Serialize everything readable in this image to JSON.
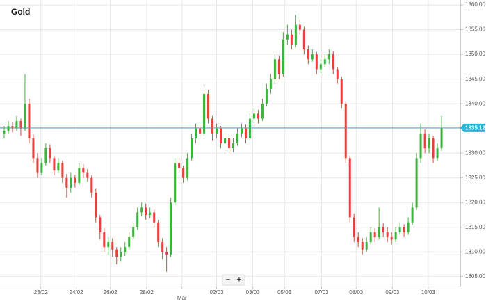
{
  "chart_data": {
    "type": "candlestick",
    "title": "Gold",
    "x": [
      1,
      2,
      3,
      4,
      5,
      6,
      7,
      8,
      9,
      10,
      11,
      12,
      13,
      14,
      15,
      16,
      17,
      18,
      19,
      20,
      21,
      22,
      23,
      24,
      25,
      26,
      27,
      28,
      29,
      30,
      31,
      32,
      33,
      34,
      35,
      36,
      37,
      38,
      39,
      40,
      41,
      42,
      43,
      44,
      45,
      46,
      47,
      48,
      49,
      50,
      51,
      52,
      53,
      54,
      55,
      56,
      57,
      58,
      59,
      60,
      61,
      62,
      63,
      64,
      65,
      66,
      67,
      68,
      69,
      70,
      71,
      72,
      73,
      74,
      75,
      76,
      77,
      78,
      79,
      80,
      81,
      82,
      83,
      84,
      85,
      86,
      87,
      88,
      89,
      90,
      91,
      92,
      93,
      94,
      95,
      96,
      97,
      98,
      99,
      100,
      101,
      102,
      103,
      104,
      105,
      106
    ],
    "open": [
      1834,
      1834.5,
      1835.5,
      1835,
      1836.5,
      1835,
      1840,
      1833,
      1829,
      1826,
      1828,
      1831,
      1829,
      1826.5,
      1828,
      1825,
      1823,
      1825,
      1824,
      1827,
      1826,
      1825,
      1822,
      1817,
      1814,
      1811,
      1812,
      1810.5,
      1809,
      1810,
      1811,
      1813,
      1815,
      1818,
      1819,
      1817.5,
      1818,
      1816,
      1812,
      1810,
      1809.5,
      1820,
      1828,
      1827,
      1825,
      1829,
      1833,
      1835,
      1834,
      1842,
      1837,
      1834,
      1835,
      1832,
      1833,
      1831,
      1832,
      1834,
      1835,
      1833,
      1837,
      1838,
      1837,
      1840,
      1843,
      1845,
      1849,
      1846,
      1853,
      1854,
      1852,
      1856,
      1855,
      1851,
      1849,
      1850,
      1847,
      1848,
      1849,
      1850,
      1847,
      1845,
      1840,
      1829,
      1817,
      1813,
      1812,
      1810.5,
      1812,
      1814,
      1813,
      1815,
      1814,
      1813,
      1812.5,
      1814,
      1815,
      1814,
      1816,
      1819,
      1829,
      1834,
      1831,
      1833,
      1829,
      1831
    ],
    "high": [
      1835.5,
      1836.5,
      1836.2,
      1837.5,
      1837,
      1846,
      1841,
      1833.8,
      1830,
      1829,
      1832,
      1831.8,
      1829.5,
      1829,
      1828.5,
      1825.8,
      1826,
      1825.6,
      1828,
      1827.8,
      1826.8,
      1825.5,
      1822.8,
      1817.5,
      1814.8,
      1813,
      1812.8,
      1811,
      1811,
      1812,
      1814,
      1816,
      1819,
      1820,
      1819.8,
      1819,
      1818.6,
      1816.5,
      1812.8,
      1811,
      1821,
      1829,
      1829,
      1827.5,
      1830,
      1834,
      1836,
      1835.8,
      1844,
      1842.8,
      1837.5,
      1836,
      1835.5,
      1834,
      1833.6,
      1833,
      1835,
      1836,
      1835.8,
      1838,
      1839,
      1838.8,
      1841,
      1844,
      1846,
      1850,
      1849.8,
      1854.5,
      1856,
      1855,
      1858,
      1857,
      1855.6,
      1851.8,
      1851,
      1850.5,
      1849,
      1850,
      1851,
      1850.6,
      1847.5,
      1845.5,
      1840.5,
      1829.5,
      1817.8,
      1814,
      1812.8,
      1813,
      1815,
      1814.8,
      1819,
      1815.8,
      1815,
      1814,
      1815,
      1816,
      1815.6,
      1817,
      1820,
      1830,
      1836,
      1834.8,
      1834,
      1833.5,
      1832,
      1837.5
    ],
    "low": [
      1833,
      1834,
      1834.2,
      1834.5,
      1833.5,
      1834.5,
      1832,
      1828,
      1825,
      1825.5,
      1827.5,
      1828,
      1825.5,
      1826,
      1824,
      1821,
      1822,
      1823,
      1823.5,
      1825,
      1824.2,
      1821,
      1816,
      1812.5,
      1810,
      1809.5,
      1809,
      1807.5,
      1808,
      1809.2,
      1810.5,
      1812.5,
      1814.5,
      1817.2,
      1816.5,
      1816.8,
      1815,
      1811,
      1808.5,
      1806,
      1809,
      1819.5,
      1826,
      1824,
      1824.5,
      1828.5,
      1832,
      1833,
      1833.5,
      1836,
      1832.5,
      1833,
      1831,
      1830.5,
      1830,
      1830.2,
      1831.5,
      1833.2,
      1832,
      1832.5,
      1836,
      1836,
      1836.5,
      1839.5,
      1842,
      1844,
      1845,
      1845.5,
      1852,
      1851,
      1851.5,
      1854,
      1850,
      1848,
      1848.5,
      1846,
      1846.2,
      1847.5,
      1848,
      1846,
      1844,
      1839,
      1828,
      1816,
      1812,
      1811,
      1809.5,
      1810,
      1811.5,
      1812,
      1812.5,
      1813,
      1812,
      1811.5,
      1812,
      1813.5,
      1813,
      1813.5,
      1815.5,
      1818.5,
      1828,
      1830,
      1830,
      1828,
      1828.5,
      1830.5
    ],
    "close": [
      1834.5,
      1835.5,
      1835,
      1836.5,
      1835,
      1840,
      1833,
      1829,
      1826,
      1828,
      1831,
      1829,
      1826.5,
      1828,
      1825,
      1823,
      1825,
      1824,
      1827,
      1826,
      1825,
      1822,
      1817,
      1814,
      1811,
      1812,
      1810.5,
      1809,
      1810,
      1811,
      1813,
      1815,
      1818,
      1819,
      1817.5,
      1818,
      1816,
      1812,
      1810,
      1809.5,
      1820,
      1828,
      1827,
      1825,
      1829,
      1833,
      1835,
      1834,
      1842,
      1837,
      1834,
      1835,
      1832,
      1833,
      1831,
      1832,
      1834,
      1835,
      1833,
      1837,
      1838,
      1837,
      1840,
      1843,
      1845,
      1849,
      1846,
      1853,
      1854,
      1852,
      1856,
      1855,
      1851,
      1849,
      1850,
      1847,
      1848,
      1849,
      1850,
      1847,
      1845,
      1840,
      1829,
      1817,
      1813,
      1812,
      1810.5,
      1812,
      1814,
      1813,
      1815,
      1814,
      1813,
      1812.5,
      1814,
      1815,
      1814,
      1816,
      1819,
      1829,
      1834,
      1831,
      1833,
      1829,
      1831,
      1835.12
    ],
    "up_color": "#3cb43c",
    "down_color": "#e8403a",
    "current_price": 1835.12,
    "current_price_color": "#2bb5d9",
    "xlim": [
      0,
      110.5
    ],
    "xticks": [
      {
        "value": 9.8,
        "label": "23/02"
      },
      {
        "value": 18.3,
        "label": "24/02"
      },
      {
        "value": 26.5,
        "label": "26/02"
      },
      {
        "value": 35.2,
        "label": "28/02"
      },
      {
        "value": 52,
        "label": "02/03"
      },
      {
        "value": 60.7,
        "label": "03/03"
      },
      {
        "value": 68.3,
        "label": "05/03"
      },
      {
        "value": 77.2,
        "label": "07/03"
      },
      {
        "value": 85.5,
        "label": "08/03"
      },
      {
        "value": 94.2,
        "label": "09/03"
      },
      {
        "value": 102.8,
        "label": "10/03"
      }
    ],
    "month_ticks": [
      {
        "value": 43.7,
        "label": "Mar"
      }
    ],
    "ylim": [
      1803,
      1861
    ],
    "yticks": [
      {
        "value": 1805,
        "label": "1805.00"
      },
      {
        "value": 1810,
        "label": "1810.00"
      },
      {
        "value": 1815,
        "label": "1815.00"
      },
      {
        "value": 1820,
        "label": "1820.00"
      },
      {
        "value": 1825,
        "label": "1825.00"
      },
      {
        "value": 1830,
        "label": "1830.00"
      },
      {
        "value": 1835,
        "label": "1835.00"
      },
      {
        "value": 1840,
        "label": "1840.00"
      },
      {
        "value": 1845,
        "label": "1845.00"
      },
      {
        "value": 1850,
        "label": "1850.00"
      },
      {
        "value": 1855,
        "label": "1855.00"
      },
      {
        "value": 1860,
        "label": "1860.00"
      }
    ],
    "grid": true
  },
  "ui": {
    "zoom_out": "−",
    "zoom_in": "+"
  }
}
